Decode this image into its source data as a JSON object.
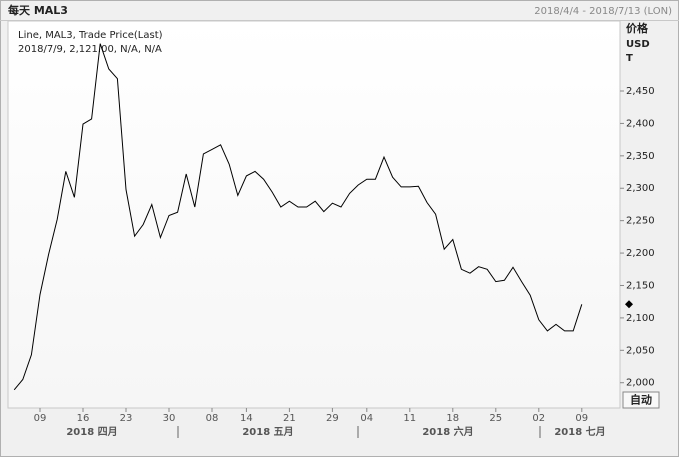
{
  "chart_data": {
    "type": "line",
    "header_left": "每天 MAL3",
    "header_right": "2018/4/4 - 2018/7/13 (LON)",
    "legend_line1": "Line, MAL3, Trade Price(Last)",
    "legend_line2": "2018/7/9, 2,121.00, N/A, N/A",
    "y_title": [
      "价格",
      "USD",
      "T"
    ],
    "button": "自动",
    "categories": [
      null,
      null,
      null,
      "09",
      null,
      null,
      null,
      null,
      "16",
      null,
      null,
      null,
      null,
      "23",
      null,
      null,
      null,
      null,
      "30",
      null,
      null,
      null,
      null,
      "08",
      null,
      null,
      null,
      "14",
      null,
      null,
      null,
      null,
      "21",
      null,
      null,
      null,
      null,
      "29",
      null,
      null,
      null,
      "04",
      null,
      null,
      null,
      null,
      "11",
      null,
      null,
      null,
      null,
      "18",
      null,
      null,
      null,
      null,
      "25",
      null,
      null,
      null,
      null,
      "02",
      null,
      null,
      null,
      null,
      "09"
    ],
    "month_labels": [
      "2018 四月",
      "2018 五月",
      "2018 六月",
      "2018 七月"
    ],
    "series": [
      {
        "name": "MAL3",
        "color": "#000000",
        "values": [
          1989,
          2005,
          2043,
          2136,
          2198,
          2252,
          2326,
          2286,
          2399,
          2407,
          2523,
          2484,
          2469,
          2298,
          2226,
          2244,
          2275,
          2224,
          2258,
          2263,
          2322,
          2271,
          2353,
          2360,
          2367,
          2337,
          2289,
          2319,
          2326,
          2314,
          2294,
          2271,
          2280,
          2271,
          2271,
          2280,
          2264,
          2277,
          2271,
          2292,
          2305,
          2314,
          2314,
          2348,
          2317,
          2302,
          2302,
          2303,
          2278,
          2260,
          2206,
          2221,
          2175,
          2169,
          2179,
          2175,
          2156,
          2158,
          2178,
          2156,
          2135,
          2097,
          2080,
          2090,
          2080,
          2080,
          2121
        ]
      }
    ],
    "ylim": [
      1961,
      2558
    ],
    "yticks": [
      {
        "value": 2000,
        "label": "2,000"
      },
      {
        "value": 2050,
        "label": "2,050"
      },
      {
        "value": 2100,
        "label": "2,100"
      },
      {
        "value": 2150,
        "label": "2,150"
      },
      {
        "value": 2200,
        "label": "2,200"
      },
      {
        "value": 2250,
        "label": "2,250"
      },
      {
        "value": 2300,
        "label": "2,300"
      },
      {
        "value": 2350,
        "label": "2,350"
      },
      {
        "value": 2400,
        "label": "2,400"
      },
      {
        "value": 2450,
        "label": "2,450"
      }
    ],
    "last_marker": true
  }
}
